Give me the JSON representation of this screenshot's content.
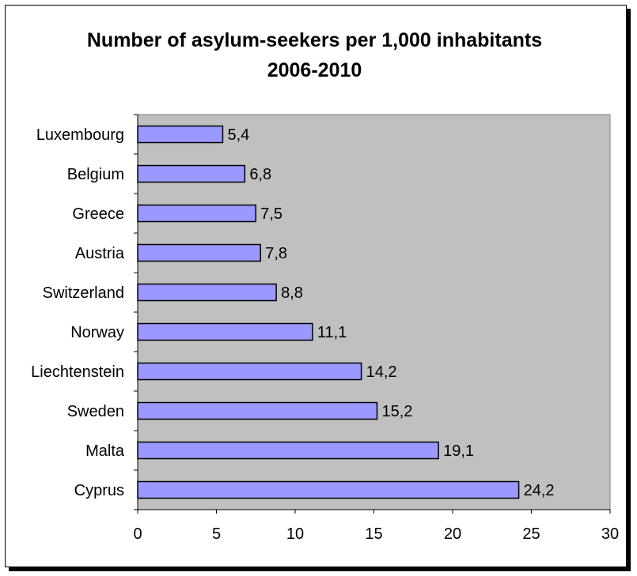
{
  "chart_data": {
    "type": "bar",
    "orientation": "horizontal",
    "title": "Number of asylum-seekers per 1,000 inhabitants\n2006-2010",
    "categories": [
      "Luxembourg",
      "Belgium",
      "Greece",
      "Austria",
      "Switzerland",
      "Norway",
      "Liechtenstein",
      "Sweden",
      "Malta",
      "Cyprus"
    ],
    "values": [
      5.4,
      6.8,
      7.5,
      7.8,
      8.8,
      11.1,
      14.2,
      15.2,
      19.1,
      24.2
    ],
    "value_labels": [
      "5,4",
      "6,8",
      "7,5",
      "7,8",
      "8,8",
      "11,1",
      "14,2",
      "15,2",
      "19,1",
      "24,2"
    ],
    "xlim": [
      0,
      30
    ],
    "xticks": [
      0,
      5,
      10,
      15,
      20,
      25,
      30
    ],
    "xtick_labels": [
      "0",
      "5",
      "10",
      "15",
      "20",
      "25",
      "30"
    ],
    "grid": false,
    "legend": "none",
    "colors": {
      "bar_fill": "#9999ff",
      "bar_stroke": "#000000",
      "plot_background": "#c0c0c0"
    }
  }
}
